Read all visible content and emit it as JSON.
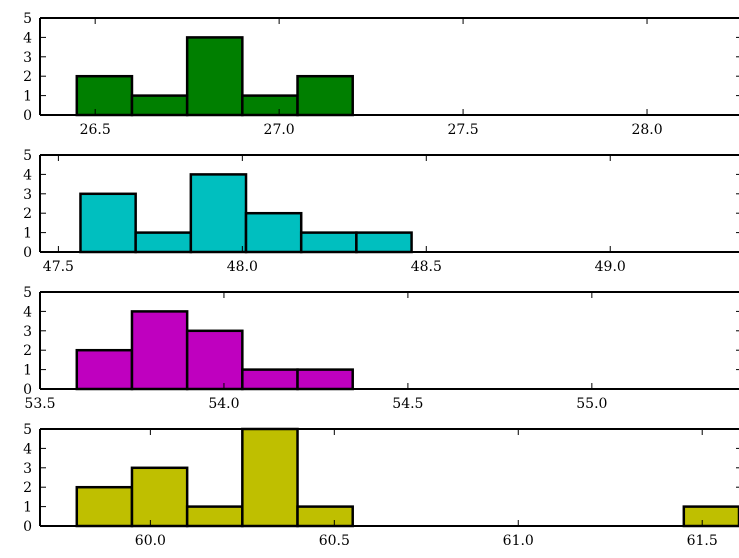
{
  "chart_data": [
    {
      "type": "bar",
      "color": "#007f00",
      "bins": [
        {
          "left": 26.45,
          "right": 26.6,
          "count": 2
        },
        {
          "left": 26.6,
          "right": 26.75,
          "count": 1
        },
        {
          "left": 26.75,
          "right": 26.9,
          "count": 4
        },
        {
          "left": 26.9,
          "right": 27.05,
          "count": 1
        },
        {
          "left": 27.05,
          "right": 27.2,
          "count": 2
        }
      ],
      "xlim": [
        26.35,
        28.25
      ],
      "ylim": [
        0,
        5
      ],
      "xticks": [
        26.5,
        27.0,
        27.5,
        28.0
      ],
      "xtick_labels": [
        "26.5",
        "27.0",
        "27.5",
        "28.0"
      ],
      "yticks": [
        0,
        1,
        2,
        3,
        4,
        5
      ],
      "ytick_labels": [
        "0",
        "1",
        "2",
        "3",
        "4",
        "5"
      ]
    },
    {
      "type": "bar",
      "color": "#00bfbf",
      "bins": [
        {
          "left": 47.56,
          "right": 47.71,
          "count": 3
        },
        {
          "left": 47.71,
          "right": 47.86,
          "count": 1
        },
        {
          "left": 47.86,
          "right": 48.01,
          "count": 4
        },
        {
          "left": 48.01,
          "right": 48.16,
          "count": 2
        },
        {
          "left": 48.16,
          "right": 48.31,
          "count": 1
        },
        {
          "left": 48.31,
          "right": 48.46,
          "count": 1
        }
      ],
      "xlim": [
        47.45,
        49.35
      ],
      "ylim": [
        0,
        5
      ],
      "xticks": [
        47.5,
        48.0,
        48.5,
        49.0
      ],
      "xtick_labels": [
        "47.5",
        "48.0",
        "48.5",
        "49.0"
      ],
      "yticks": [
        0,
        1,
        2,
        3,
        4,
        5
      ],
      "ytick_labels": [
        "0",
        "1",
        "2",
        "3",
        "4",
        "5"
      ]
    },
    {
      "type": "bar",
      "color": "#bf00bf",
      "bins": [
        {
          "left": 53.6,
          "right": 53.75,
          "count": 2
        },
        {
          "left": 53.75,
          "right": 53.9,
          "count": 4
        },
        {
          "left": 53.9,
          "right": 54.05,
          "count": 3
        },
        {
          "left": 54.05,
          "right": 54.2,
          "count": 1
        },
        {
          "left": 54.2,
          "right": 54.35,
          "count": 1
        }
      ],
      "xlim": [
        53.5,
        55.4
      ],
      "ylim": [
        0,
        5
      ],
      "xticks": [
        53.5,
        54.0,
        54.5,
        55.0
      ],
      "xtick_labels": [
        "53.5",
        "54.0",
        "54.5",
        "55.0"
      ],
      "yticks": [
        0,
        1,
        2,
        3,
        4,
        5
      ],
      "ytick_labels": [
        "0",
        "1",
        "2",
        "3",
        "4",
        "5"
      ]
    },
    {
      "type": "bar",
      "color": "#bfbf00",
      "bins": [
        {
          "left": 59.8,
          "right": 59.95,
          "count": 2
        },
        {
          "left": 59.95,
          "right": 60.1,
          "count": 3
        },
        {
          "left": 60.1,
          "right": 60.25,
          "count": 1
        },
        {
          "left": 60.25,
          "right": 60.4,
          "count": 5
        },
        {
          "left": 60.4,
          "right": 60.55,
          "count": 1
        },
        {
          "left": 61.45,
          "right": 61.6,
          "count": 1
        }
      ],
      "xlim": [
        59.7,
        61.6
      ],
      "ylim": [
        0,
        5
      ],
      "xticks": [
        60.0,
        60.5,
        61.0,
        61.5
      ],
      "xtick_labels": [
        "60.0",
        "60.5",
        "61.0",
        "61.5"
      ],
      "yticks": [
        0,
        1,
        2,
        3,
        4,
        5
      ],
      "ytick_labels": [
        "0",
        "1",
        "2",
        "3",
        "4",
        "5"
      ]
    }
  ]
}
